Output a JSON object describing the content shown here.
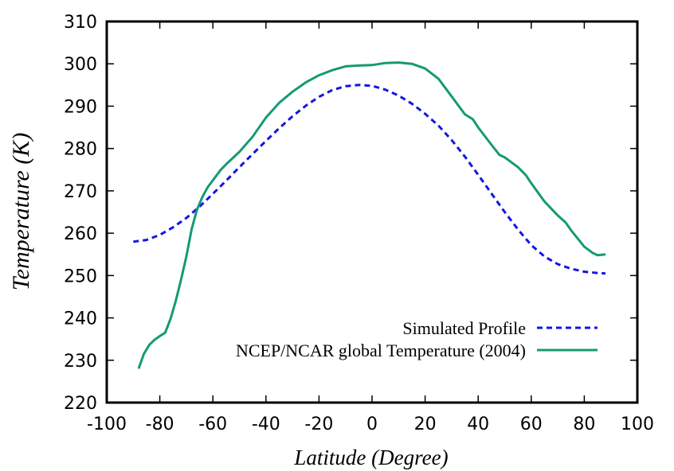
{
  "chart_data": {
    "type": "line",
    "title": "",
    "xlabel": "Latitude (Degree)",
    "ylabel": "Temperature (K)",
    "xlim": [
      -100,
      100
    ],
    "ylim": [
      220,
      310
    ],
    "x_ticks": [
      -100,
      -80,
      -60,
      -40,
      -20,
      0,
      20,
      40,
      60,
      80,
      100
    ],
    "y_ticks": [
      220,
      230,
      240,
      250,
      260,
      270,
      280,
      290,
      300,
      310
    ],
    "grid": false,
    "legend_position": "bottom-right",
    "series": [
      {
        "name": "Simulated Profile",
        "color": "#1414e6",
        "style": "dashed",
        "x": [
          -90,
          -85,
          -80,
          -75,
          -70,
          -65,
          -60,
          -55,
          -50,
          -45,
          -40,
          -35,
          -30,
          -25,
          -20,
          -15,
          -10,
          -5,
          0,
          5,
          10,
          15,
          20,
          25,
          30,
          35,
          40,
          45,
          50,
          55,
          60,
          65,
          70,
          75,
          80,
          85,
          88
        ],
        "y": [
          258,
          258.4,
          259.6,
          261.4,
          263.6,
          266.3,
          269.3,
          272.4,
          275.6,
          278.7,
          281.8,
          284.8,
          287.6,
          290.1,
          292.2,
          293.8,
          294.7,
          295.0,
          294.8,
          293.9,
          292.5,
          290.6,
          288.2,
          285.4,
          282.0,
          278.1,
          273.8,
          269.4,
          265.0,
          260.9,
          257.2,
          254.5,
          252.7,
          251.6,
          250.9,
          250.6,
          250.5
        ]
      },
      {
        "name": "NCEP/NCAR global Temperature (2004)",
        "color": "#149a74",
        "style": "solid",
        "x": [
          -88,
          -86,
          -84,
          -82,
          -80,
          -78,
          -76,
          -74,
          -72,
          -70,
          -68,
          -66,
          -64,
          -62,
          -60,
          -57,
          -55,
          -50,
          -45,
          -40,
          -35,
          -30,
          -25,
          -20,
          -15,
          -10,
          -5,
          0,
          5,
          10,
          15,
          20,
          25,
          30,
          35,
          38,
          40,
          45,
          48,
          50,
          55,
          58,
          60,
          65,
          70,
          73,
          75,
          80,
          83,
          85,
          88
        ],
        "y": [
          228,
          231.5,
          233.6,
          234.8,
          235.7,
          236.5,
          239.7,
          244,
          249,
          254.5,
          261,
          265.5,
          268.5,
          270.8,
          272.5,
          275,
          276.3,
          279.2,
          282.8,
          287.3,
          290.8,
          293.4,
          295.6,
          297.3,
          298.5,
          299.4,
          299.6,
          299.7,
          300.2,
          300.3,
          300.0,
          298.9,
          296.5,
          292.3,
          288.1,
          286.9,
          285,
          280.9,
          278.5,
          277.9,
          275.6,
          273.7,
          271.8,
          267.5,
          264.2,
          262.5,
          260.7,
          256.8,
          255.4,
          254.8,
          255
        ]
      }
    ]
  }
}
